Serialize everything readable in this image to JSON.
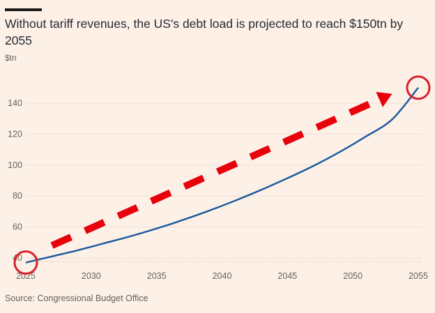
{
  "header": {
    "title": "Without tariff revenues, the US's debt load is projected to reach $150tn by 2055",
    "unit_label": "$tn"
  },
  "footer": {
    "source": "Source: Congressional Budget Office"
  },
  "colors": {
    "background": "#fdf1e7",
    "line": "#1f5b9e",
    "annotation": "#e8000b",
    "circle": "#d9202a",
    "grid": "#ece0d6"
  },
  "chart_data": {
    "type": "line",
    "title": "Without tariff revenues, the US's debt load is projected to reach $150tn by 2055",
    "xlabel": "",
    "ylabel": "$tn",
    "xlim": [
      2025,
      2055
    ],
    "ylim": [
      35,
      150
    ],
    "grid": true,
    "x_ticks": [
      2025,
      2030,
      2035,
      2040,
      2045,
      2050,
      2055
    ],
    "y_ticks": [
      40,
      60,
      80,
      100,
      120,
      140
    ],
    "series": [
      {
        "name": "US debt load",
        "x": [
          2025,
          2027,
          2029,
          2031,
          2033,
          2035,
          2037,
          2039,
          2041,
          2043,
          2045,
          2047,
          2049,
          2051,
          2053,
          2055
        ],
        "values": [
          37,
          41,
          45,
          49.5,
          54,
          59,
          64.5,
          70.5,
          77,
          84,
          91.5,
          99.5,
          108.5,
          118.5,
          129.5,
          150
        ]
      }
    ],
    "annotations": [
      {
        "type": "circle",
        "label": "start",
        "x": 2025,
        "y": 37
      },
      {
        "type": "circle",
        "label": "end",
        "x": 2055,
        "y": 150
      },
      {
        "type": "dashed-arrow",
        "from": {
          "x": 2027,
          "y": 48
        },
        "to": {
          "x": 2053,
          "y": 146
        }
      }
    ]
  }
}
